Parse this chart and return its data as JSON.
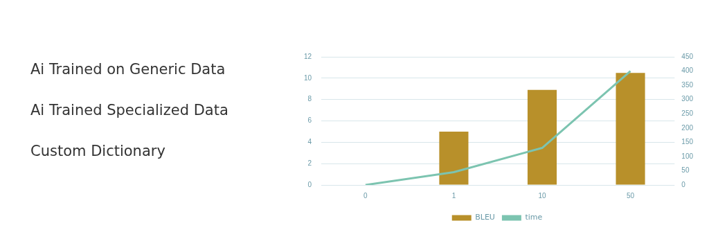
{
  "chart_data": {
    "type": "bar",
    "categories": [
      "0",
      "1",
      "10",
      "50"
    ],
    "series": [
      {
        "name": "BLEU",
        "color": "#b8902a",
        "values": [
          0,
          5,
          8.9,
          10.5
        ]
      },
      {
        "name": "time",
        "type": "line",
        "axis": "y2",
        "color": "#7cc4b0",
        "values": [
          0,
          45,
          130,
          400
        ]
      }
    ],
    "ylim": [
      0,
      12
    ],
    "yticks": [
      0,
      2,
      4,
      6,
      8,
      10,
      12
    ],
    "y2lim": [
      0,
      450
    ],
    "y2ticks": [
      0,
      50,
      100,
      150,
      200,
      250,
      300,
      350,
      400,
      450
    ],
    "grid": "y",
    "legend": "bottom",
    "marker": "none",
    "annotations": [
      "Ai Trained on Generic Data",
      "Ai Trained Specialized Data",
      "Custom Dictionary"
    ]
  }
}
